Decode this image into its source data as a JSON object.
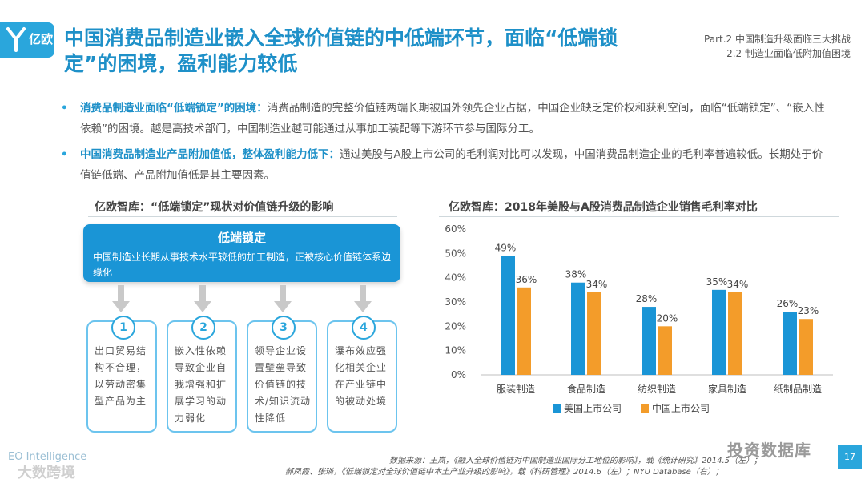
{
  "header": {
    "logo_text": "亿欧",
    "title": "中国消费品制造业嵌入全球价值链的中低端环节，面临“低端锁定”的困境，盈利能力较低",
    "part_line1": "Part.2 中国制造升级面临三大挑战",
    "part_line2": "2.2 制造业面临低附加值困境"
  },
  "bullets": [
    {
      "dot": "•",
      "bold": "消费品制造业面临“低端锁定”的困境：",
      "text": "消费品制造的完整价值链两端长期被国外领先企业占据，中国企业缺乏定价权和获利空间，面临“低端锁定”、“嵌入性依赖”的困境。越是高技术部门，中国制造业越可能通过从事加工装配等下游环节参与国际分工。"
    },
    {
      "dot": "•",
      "bold": "中国消费品制造业产品附加值低，整体盈利能力低下：",
      "text": "通过美股与A股上市公司的毛利润对比可以发现，中国消费品制造企业的毛利率普遍较低。长期处于价值链低端、产品附加值低是其主要因素。"
    }
  ],
  "diagram": {
    "title": "亿欧智库：“低端锁定”现状对价值链升级的影响",
    "main_title": "低端锁定",
    "main_desc": "中国制造业长期从事技术水平较低的加工制造，正被核心价值链体系边缘化",
    "steps": [
      {
        "num": "1",
        "text": "出口贸易结构不合理，以劳动密集型产品为主"
      },
      {
        "num": "2",
        "text": "嵌入性依赖导致企业自我增强和扩展学习的动力弱化"
      },
      {
        "num": "3",
        "text": "领导企业设置壁垒导致价值链的技术/知识流动性降低"
      },
      {
        "num": "4",
        "text": "瀑布效应强化相关企业在产业链中的被动处境"
      }
    ]
  },
  "chart_data": {
    "type": "bar",
    "title": "亿欧智库：2018年美股与A股消费品制造企业销售毛利率对比",
    "categories": [
      "服装制造",
      "食品制造",
      "纺织制造",
      "家具制造",
      "纸制品制造"
    ],
    "series": [
      {
        "name": "美国上市公司",
        "color": "#1a95d6",
        "values": [
          49,
          38,
          28,
          35,
          26
        ]
      },
      {
        "name": "中国上市公司",
        "color": "#f39c2a",
        "values": [
          36,
          34,
          20,
          34,
          23
        ]
      }
    ],
    "value_suffix": "%",
    "yticks": [
      "0%",
      "10%",
      "20%",
      "30%",
      "40%",
      "50%",
      "60%"
    ],
    "ylim": [
      0,
      60
    ],
    "legend_position": "bottom"
  },
  "footer": {
    "source1": "数据来源：王岚，《融入全球价值链对中国制造业国际分工地位的影响》，载《统计研究》2014.5（左）；",
    "source2": "郝凤霞、张璘，《低端锁定对全球价值链中本土产业升级的影响》，载《科研管理》2014.6（左）；NYU Database（右）；",
    "eo_label": "EO Intelligence",
    "watermark_left": "大数跨境",
    "watermark_right": "投资数据库",
    "page_number": "17"
  },
  "colors": {
    "accent": "#1a95d6",
    "orange": "#f39c2a"
  }
}
